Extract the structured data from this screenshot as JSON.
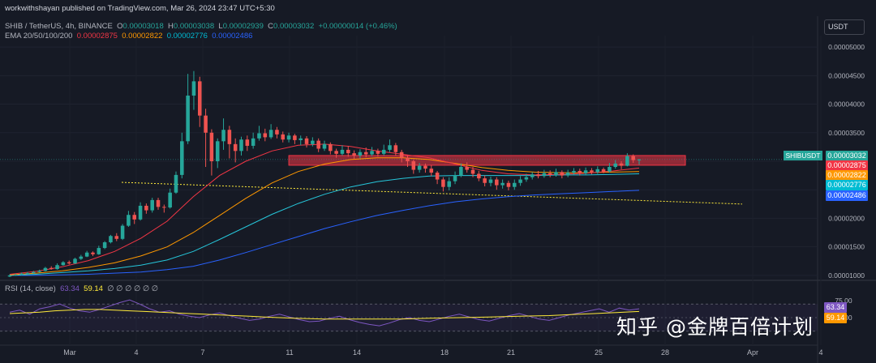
{
  "header": {
    "publisher": "workwithshayan published on TradingView.com, Mar 26, 2024 23:47 UTC+5:30",
    "symbol_line": "SHIB / TetherUS, 4h, BINANCE",
    "o_label": "O",
    "o_value": "0.00003018",
    "h_label": "H",
    "h_value": "0.00003038",
    "l_label": "L",
    "l_value": "0.00002939",
    "c_label": "C",
    "c_value": "0.00003032",
    "change": "+0.00000014 (+0.46%)",
    "ema_label": "EMA 20/50/100/200",
    "ema20": "0.00002875",
    "ema50": "0.00002822",
    "ema100": "0.00002776",
    "ema200": "0.00002486",
    "rsi_label": "RSI (14, close)",
    "rsi_value1": "63.34",
    "rsi_value2": "59.14",
    "rsi_zeros": "∅ ∅ ∅ ∅ ∅ ∅"
  },
  "currency_button": "USDT",
  "symbol_badge": "SHIBUSDT",
  "watermark": "知乎 @金牌百倍计划",
  "colors": {
    "up": "#26a69a",
    "down": "#ef5350",
    "ema20": "#f23645",
    "ema50": "#ff9800",
    "ema100": "#26c6da",
    "ema200": "#2962ff",
    "rsi": "#7e57c2"
  },
  "badges": [
    {
      "value": "0.00003032",
      "color": "#26a69a"
    },
    {
      "value": "0.00002875",
      "color": "#f23645"
    },
    {
      "value": "0.00002822",
      "color": "#ff9800"
    },
    {
      "value": "0.00002776",
      "color": "#00bcd4"
    },
    {
      "value": "0.00002486",
      "color": "#2962ff"
    }
  ],
  "rsi_badges": [
    {
      "value": "63.34",
      "color": "#7e57c2"
    },
    {
      "value": "59.14",
      "color": "#ff9800"
    }
  ],
  "chart_data": {
    "type": "candlestick",
    "price_ticks": [
      5e-05,
      4.5e-05,
      4e-05,
      3.5e-05,
      3e-05,
      2.5e-05,
      2e-05,
      1.5e-05,
      1e-05
    ],
    "price_tick_labels": [
      "0.00005000",
      "0.00004500",
      "0.00004000",
      "0.00003500",
      "0.00003000",
      "0.00002500",
      "0.00002000",
      "0.00001500",
      "0.00001000"
    ],
    "rsi_ticks": [
      75.0,
      50.0
    ],
    "rsi_tick_labels": [
      "75.00",
      "50.00"
    ],
    "x_labels": [
      "Mar",
      "4",
      "7",
      "11",
      "14",
      "18",
      "21",
      "25",
      "28",
      "Apr",
      "4"
    ],
    "resistance_zone": [
      2.93e-05,
      3.1e-05
    ],
    "trendline": {
      "from": 2.63e-05,
      "to": 2.25e-05
    },
    "ylim": [
      9.7e-06,
      5.2e-05
    ],
    "candles": [
      [
        1e-05,
        9.8e-06,
        1.02e-05,
        9.7e-06
      ],
      [
        1.01e-05,
        1e-05,
        1.03e-05,
        9.9e-06
      ],
      [
        1.03e-05,
        1.01e-05,
        1.05e-05,
        1e-05
      ],
      [
        1.04e-05,
        1.03e-05,
        1.06e-05,
        1.01e-05
      ],
      [
        1.06e-05,
        1.04e-05,
        1.08e-05,
        1.03e-05
      ],
      [
        1.08e-05,
        1.06e-05,
        1.1e-05,
        1.05e-05
      ],
      [
        1.13e-05,
        1.08e-05,
        1.15e-05,
        1.07e-05
      ],
      [
        1.11e-05,
        1.13e-05,
        1.16e-05,
        1.1e-05
      ],
      [
        1.18e-05,
        1.11e-05,
        1.21e-05,
        1.1e-05
      ],
      [
        1.23e-05,
        1.18e-05,
        1.25e-05,
        1.17e-05
      ],
      [
        1.21e-05,
        1.23e-05,
        1.26e-05,
        1.19e-05
      ],
      [
        1.29e-05,
        1.21e-05,
        1.31e-05,
        1.2e-05
      ],
      [
        1.33e-05,
        1.29e-05,
        1.36e-05,
        1.27e-05
      ],
      [
        1.4e-05,
        1.33e-05,
        1.43e-05,
        1.32e-05
      ],
      [
        1.37e-05,
        1.4e-05,
        1.42e-05,
        1.34e-05
      ],
      [
        1.48e-05,
        1.37e-05,
        1.52e-05,
        1.36e-05
      ],
      [
        1.58e-05,
        1.48e-05,
        1.6e-05,
        1.46e-05
      ],
      [
        1.69e-05,
        1.58e-05,
        1.71e-05,
        1.56e-05
      ],
      [
        1.64e-05,
        1.69e-05,
        1.74e-05,
        1.6e-05
      ],
      [
        1.87e-05,
        1.64e-05,
        1.9e-05,
        1.62e-05
      ],
      [
        2.06e-05,
        1.87e-05,
        2.13e-05,
        1.85e-05
      ],
      [
        1.98e-05,
        2.06e-05,
        2.11e-05,
        1.9e-05
      ],
      [
        2.22e-05,
        1.98e-05,
        2.28e-05,
        1.96e-05
      ],
      [
        2.14e-05,
        2.22e-05,
        2.26e-05,
        2.08e-05
      ],
      [
        2.32e-05,
        2.14e-05,
        2.36e-05,
        2.1e-05
      ],
      [
        2.2e-05,
        2.32e-05,
        2.36e-05,
        2.15e-05
      ],
      [
        2.19e-05,
        2.2e-05,
        2.24e-05,
        2.1e-05
      ],
      [
        2.45e-05,
        2.19e-05,
        2.52e-05,
        2.17e-05
      ],
      [
        2.76e-05,
        2.45e-05,
        2.82e-05,
        2.43e-05
      ],
      [
        3.35e-05,
        2.76e-05,
        3.5e-05,
        2.7e-05
      ],
      [
        4.15e-05,
        3.35e-05,
        4.53e-05,
        3.3e-05
      ],
      [
        4.4e-05,
        4.15e-05,
        4.58e-05,
        3.9e-05
      ],
      [
        3.8e-05,
        4.4e-05,
        4.48e-05,
        3.6e-05
      ],
      [
        3.5e-05,
        3.8e-05,
        3.92e-05,
        2.9e-05
      ],
      [
        3e-05,
        3.5e-05,
        3.56e-05,
        2.75e-05
      ],
      [
        3.35e-05,
        3e-05,
        3.4e-05,
        2.88e-05
      ],
      [
        3.55e-05,
        3.35e-05,
        3.75e-05,
        3.2e-05
      ],
      [
        3.3e-05,
        3.55e-05,
        3.62e-05,
        3.05e-05
      ],
      [
        3.18e-05,
        3.3e-05,
        3.4e-05,
        2.98e-05
      ],
      [
        3.38e-05,
        3.18e-05,
        3.43e-05,
        3.1e-05
      ],
      [
        3.27e-05,
        3.38e-05,
        3.45e-05,
        3.18e-05
      ],
      [
        3.4e-05,
        3.27e-05,
        3.5e-05,
        3.22e-05
      ],
      [
        3.49e-05,
        3.4e-05,
        3.62e-05,
        3.36e-05
      ],
      [
        3.42e-05,
        3.49e-05,
        3.57e-05,
        3.35e-05
      ],
      [
        3.55e-05,
        3.42e-05,
        3.65e-05,
        3.39e-05
      ],
      [
        3.47e-05,
        3.55e-05,
        3.6e-05,
        3.4e-05
      ],
      [
        3.38e-05,
        3.47e-05,
        3.52e-05,
        3.33e-05
      ],
      [
        3.45e-05,
        3.38e-05,
        3.5e-05,
        3.33e-05
      ],
      [
        3.37e-05,
        3.45e-05,
        3.48e-05,
        3.3e-05
      ],
      [
        3.4e-05,
        3.37e-05,
        3.45e-05,
        3.28e-05
      ],
      [
        3.3e-05,
        3.4e-05,
        3.44e-05,
        3.24e-05
      ],
      [
        3.36e-05,
        3.3e-05,
        3.42e-05,
        3.26e-05
      ],
      [
        3.22e-05,
        3.36e-05,
        3.4e-05,
        3.16e-05
      ],
      [
        3.3e-05,
        3.22e-05,
        3.36e-05,
        3.18e-05
      ],
      [
        3.18e-05,
        3.3e-05,
        3.33e-05,
        3.12e-05
      ],
      [
        3.13e-05,
        3.18e-05,
        3.22e-05,
        3.06e-05
      ],
      [
        3.2e-05,
        3.13e-05,
        3.28e-05,
        3.1e-05
      ],
      [
        3.14e-05,
        3.2e-05,
        3.27e-05,
        3.08e-05
      ],
      [
        3.1e-05,
        3.14e-05,
        3.19e-05,
        3.04e-05
      ],
      [
        3.16e-05,
        3.1e-05,
        3.21e-05,
        3.05e-05
      ],
      [
        3.12e-05,
        3.16e-05,
        3.24e-05,
        3.07e-05
      ],
      [
        3.18e-05,
        3.12e-05,
        3.25e-05,
        3.09e-05
      ],
      [
        3.13e-05,
        3.18e-05,
        3.22e-05,
        3.08e-05
      ],
      [
        3.2e-05,
        3.13e-05,
        3.29e-05,
        3.1e-05
      ],
      [
        3.28e-05,
        3.2e-05,
        3.38e-05,
        3.16e-05
      ],
      [
        3.16e-05,
        3.28e-05,
        3.32e-05,
        3.1e-05
      ],
      [
        3.06e-05,
        3.16e-05,
        3.2e-05,
        2.98e-05
      ],
      [
        3e-05,
        3.06e-05,
        3.1e-05,
        2.9e-05
      ],
      [
        2.85e-05,
        3e-05,
        3.03e-05,
        2.78e-05
      ],
      [
        2.92e-05,
        2.85e-05,
        2.97e-05,
        2.8e-05
      ],
      [
        2.87e-05,
        2.92e-05,
        2.96e-05,
        2.8e-05
      ],
      [
        2.8e-05,
        2.87e-05,
        2.93e-05,
        2.74e-05
      ],
      [
        2.68e-05,
        2.8e-05,
        2.83e-05,
        2.6e-05
      ],
      [
        2.55e-05,
        2.68e-05,
        2.72e-05,
        2.47e-05
      ],
      [
        2.65e-05,
        2.55e-05,
        2.72e-05,
        2.49e-05
      ],
      [
        2.75e-05,
        2.65e-05,
        2.82e-05,
        2.6e-05
      ],
      [
        2.9e-05,
        2.75e-05,
        2.96e-05,
        2.72e-05
      ],
      [
        2.85e-05,
        2.9e-05,
        2.98e-05,
        2.8e-05
      ],
      [
        2.78e-05,
        2.85e-05,
        2.9e-05,
        2.72e-05
      ],
      [
        2.7e-05,
        2.78e-05,
        2.83e-05,
        2.65e-05
      ],
      [
        2.62e-05,
        2.7e-05,
        2.75e-05,
        2.56e-05
      ],
      [
        2.68e-05,
        2.62e-05,
        2.73e-05,
        2.56e-05
      ],
      [
        2.58e-05,
        2.68e-05,
        2.72e-05,
        2.5e-05
      ],
      [
        2.62e-05,
        2.58e-05,
        2.68e-05,
        2.52e-05
      ],
      [
        2.55e-05,
        2.62e-05,
        2.66e-05,
        2.49e-05
      ],
      [
        2.62e-05,
        2.55e-05,
        2.68e-05,
        2.5e-05
      ],
      [
        2.68e-05,
        2.62e-05,
        2.74e-05,
        2.57e-05
      ],
      [
        2.72e-05,
        2.68e-05,
        2.78e-05,
        2.64e-05
      ],
      [
        2.77e-05,
        2.72e-05,
        2.81e-05,
        2.68e-05
      ],
      [
        2.74e-05,
        2.77e-05,
        2.83e-05,
        2.7e-05
      ],
      [
        2.79e-05,
        2.74e-05,
        2.85e-05,
        2.71e-05
      ],
      [
        2.76e-05,
        2.79e-05,
        2.84e-05,
        2.72e-05
      ],
      [
        2.81e-05,
        2.76e-05,
        2.87e-05,
        2.73e-05
      ],
      [
        2.75e-05,
        2.81e-05,
        2.84e-05,
        2.7e-05
      ],
      [
        2.8e-05,
        2.75e-05,
        2.85e-05,
        2.72e-05
      ],
      [
        2.83e-05,
        2.8e-05,
        2.88e-05,
        2.76e-05
      ],
      [
        2.79e-05,
        2.83e-05,
        2.87e-05,
        2.75e-05
      ],
      [
        2.84e-05,
        2.79e-05,
        2.89e-05,
        2.76e-05
      ],
      [
        2.81e-05,
        2.84e-05,
        2.88e-05,
        2.77e-05
      ],
      [
        2.86e-05,
        2.81e-05,
        2.91e-05,
        2.78e-05
      ],
      [
        2.82e-05,
        2.86e-05,
        2.89e-05,
        2.79e-05
      ],
      [
        2.9e-05,
        2.82e-05,
        2.97e-05,
        2.8e-05
      ],
      [
        2.96e-05,
        2.9e-05,
        3.02e-05,
        2.87e-05
      ],
      [
        2.92e-05,
        2.96e-05,
        3e-05,
        2.86e-05
      ],
      [
        3.09e-05,
        2.92e-05,
        3.14e-05,
        2.91e-05
      ],
      [
        3.02e-05,
        3.09e-05,
        3.12e-05,
        2.97e-05
      ],
      [
        3.03e-05,
        3.02e-05,
        3.04e-05,
        2.94e-05
      ]
    ],
    "ema20": [
      1.02e-05,
      1.07e-05,
      1.15e-05,
      1.26e-05,
      1.42e-05,
      1.65e-05,
      1.95e-05,
      2.38e-05,
      2.75e-05,
      3e-05,
      3.18e-05,
      3.28e-05,
      3.3e-05,
      3.26e-05,
      3.18e-05,
      3.12e-05,
      3.06e-05,
      2.95e-05,
      2.84e-05,
      2.78e-05,
      2.76e-05,
      2.77e-05,
      2.79e-05,
      2.83e-05,
      2.88e-05
    ],
    "ema50": [
      1.01e-05,
      1.04e-05,
      1.08e-05,
      1.14e-05,
      1.22e-05,
      1.34e-05,
      1.5e-05,
      1.75e-05,
      2.05e-05,
      2.35e-05,
      2.62e-05,
      2.82e-05,
      2.95e-05,
      3.03e-05,
      3.06e-05,
      3.06e-05,
      3.03e-05,
      2.96e-05,
      2.89e-05,
      2.84e-05,
      2.81e-05,
      2.8e-05,
      2.8e-05,
      2.81e-05,
      2.82e-05
    ],
    "ema100": [
      1e-05,
      1.02e-05,
      1.05e-05,
      1.08e-05,
      1.12e-05,
      1.18e-05,
      1.27e-05,
      1.42e-05,
      1.63e-05,
      1.85e-05,
      2.07e-05,
      2.26e-05,
      2.42e-05,
      2.55e-05,
      2.64e-05,
      2.7e-05,
      2.74e-05,
      2.75e-05,
      2.75e-05,
      2.75e-05,
      2.75e-05,
      2.76e-05,
      2.76e-05,
      2.77e-05,
      2.78e-05
    ],
    "ema200": [
      1e-05,
      1e-05,
      1.01e-05,
      1.02e-05,
      1.04e-05,
      1.06e-05,
      1.1e-05,
      1.16e-05,
      1.27e-05,
      1.4e-05,
      1.54e-05,
      1.68e-05,
      1.82e-05,
      1.94e-05,
      2.05e-05,
      2.14e-05,
      2.22e-05,
      2.29e-05,
      2.34e-05,
      2.38e-05,
      2.41e-05,
      2.43e-05,
      2.45e-05,
      2.47e-05,
      2.49e-05
    ],
    "rsi": [
      58,
      61,
      55,
      63,
      66,
      70,
      64,
      60,
      58,
      62,
      67,
      72,
      76,
      70,
      63,
      58,
      60,
      55,
      52,
      50,
      54,
      57,
      53,
      49,
      46,
      48,
      52,
      55,
      51,
      47,
      44,
      45,
      49,
      52,
      47,
      43,
      40,
      38,
      42,
      47,
      50,
      46,
      44,
      48,
      52,
      55,
      51,
      47,
      45,
      49,
      53,
      56,
      52,
      48,
      46,
      50,
      54,
      57,
      60,
      63,
      58,
      64,
      61,
      63
    ],
    "rsi_ma": [
      56,
      57,
      58,
      60,
      61,
      62,
      62,
      61,
      60,
      59,
      58,
      57,
      56,
      55,
      54,
      53,
      52,
      51,
      50,
      49,
      48.5,
      48,
      48,
      48,
      48,
      48,
      48,
      48.5,
      49,
      49.5,
      50,
      50.5,
      51,
      51.5,
      52,
      52.5,
      53,
      54,
      55,
      56,
      57,
      58,
      59
    ]
  }
}
